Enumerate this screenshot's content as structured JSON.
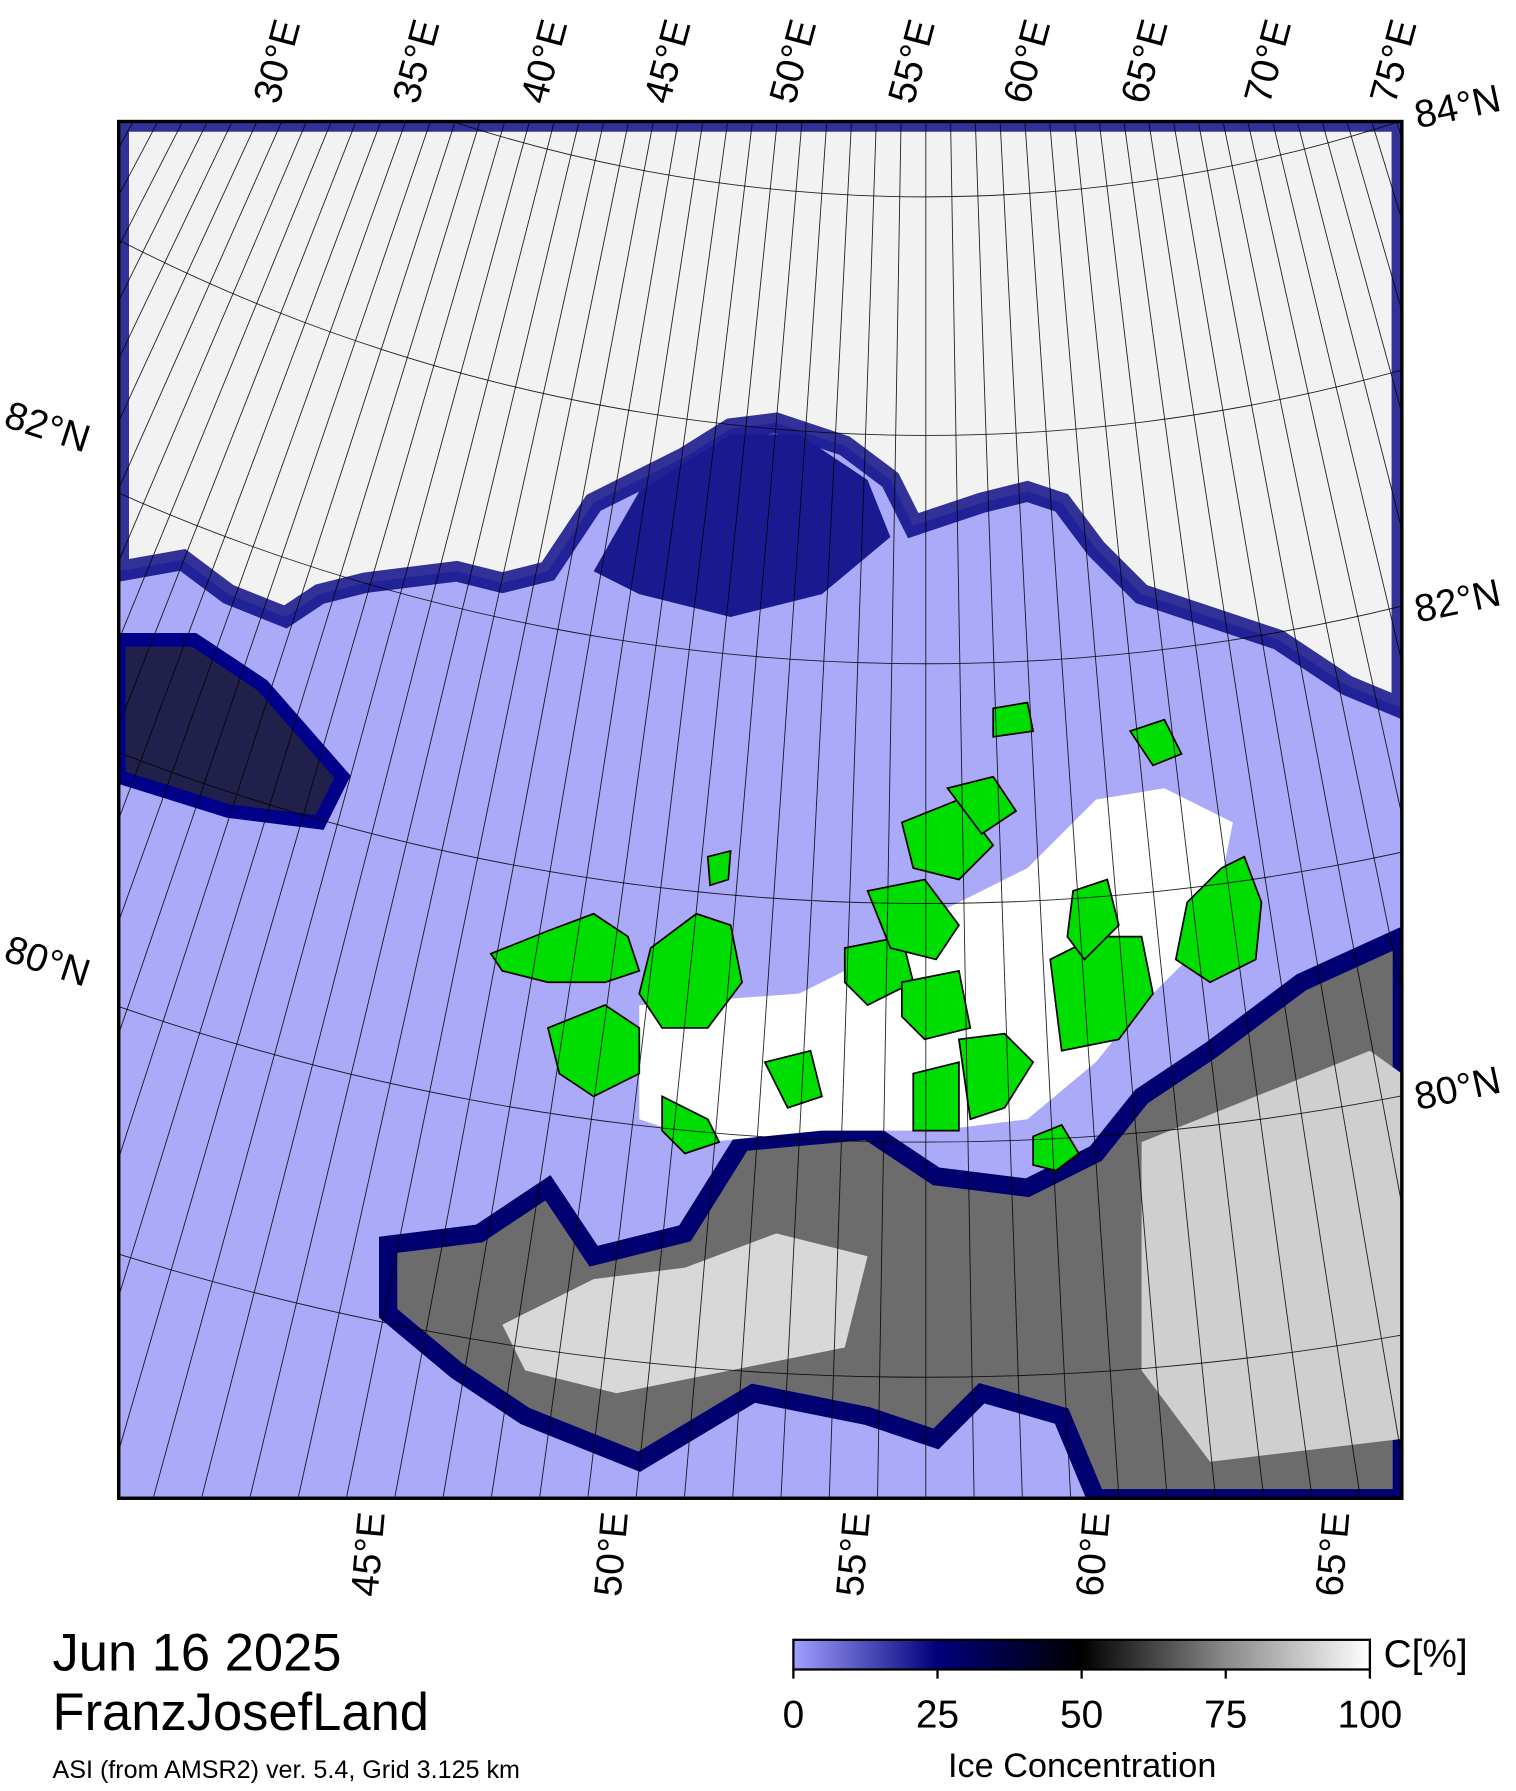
{
  "map": {
    "top_lon_labels": [
      "30°E",
      "35°E",
      "40°E",
      "45°E",
      "50°E",
      "55°E",
      "60°E",
      "65°E",
      "70°E",
      "75°E"
    ],
    "bottom_lon_labels": [
      "45°E",
      "50°E",
      "55°E",
      "60°E",
      "65°E"
    ],
    "left_lat_labels": [
      "82°N",
      "80°N"
    ],
    "right_lat_labels": [
      "84°N",
      "82°N",
      "80°N"
    ]
  },
  "title": {
    "date": "Jun 16 2025",
    "region": "FranzJosefLand",
    "source": "ASI (from AMSR2) ver. 5.4,  Grid 3.125 km"
  },
  "colorbar": {
    "label": "Ice Concentration",
    "unit": "C[%]",
    "lim": [
      0,
      100
    ],
    "ticks": [
      0,
      25,
      50,
      75,
      100
    ],
    "colors": [
      "#a0a0ff",
      "#00007a",
      "#000000",
      "#8a8a8a",
      "#ffffff"
    ]
  }
}
